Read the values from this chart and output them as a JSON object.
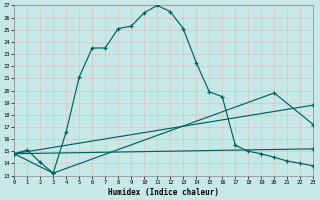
{
  "xlabel": "Humidex (Indice chaleur)",
  "bg_color": "#c8e8e8",
  "grid_color": "#aacccc",
  "line_color": "#006060",
  "xlim": [
    0,
    23
  ],
  "ylim": [
    13,
    27
  ],
  "xtick_labels": [
    "0",
    "1",
    "2",
    "3",
    "4",
    "5",
    "6",
    "7",
    "8",
    "9",
    "10",
    "11",
    "12",
    "13",
    "14",
    "15",
    "16",
    "17",
    "18",
    "19",
    "20",
    "21",
    "22",
    "23"
  ],
  "xticks": [
    0,
    1,
    2,
    3,
    4,
    5,
    6,
    7,
    8,
    9,
    10,
    11,
    12,
    13,
    14,
    15,
    16,
    17,
    18,
    19,
    20,
    21,
    22,
    23
  ],
  "yticks": [
    13,
    14,
    15,
    16,
    17,
    18,
    19,
    20,
    21,
    22,
    23,
    24,
    25,
    26,
    27
  ],
  "curve1_x": [
    0,
    1,
    2,
    3,
    4,
    5,
    6,
    7,
    8,
    9,
    10,
    11,
    12,
    13,
    14,
    15,
    16,
    17,
    18,
    19,
    20,
    21,
    22,
    23
  ],
  "curve1_y": [
    14.8,
    15.1,
    14.1,
    13.2,
    16.6,
    21.1,
    23.5,
    23.5,
    25.1,
    25.3,
    26.4,
    27.0,
    26.5,
    25.1,
    22.3,
    19.9,
    19.5,
    15.5,
    15.0,
    14.8,
    14.5,
    14.2,
    14.0,
    13.8
  ],
  "curve2_x": [
    0,
    3,
    20,
    23
  ],
  "curve2_y": [
    14.8,
    13.2,
    19.8,
    17.2
  ],
  "curve3_x": [
    0,
    23
  ],
  "curve3_y": [
    14.8,
    18.8
  ],
  "curve4_x": [
    0,
    23
  ],
  "curve4_y": [
    14.8,
    15.2
  ]
}
